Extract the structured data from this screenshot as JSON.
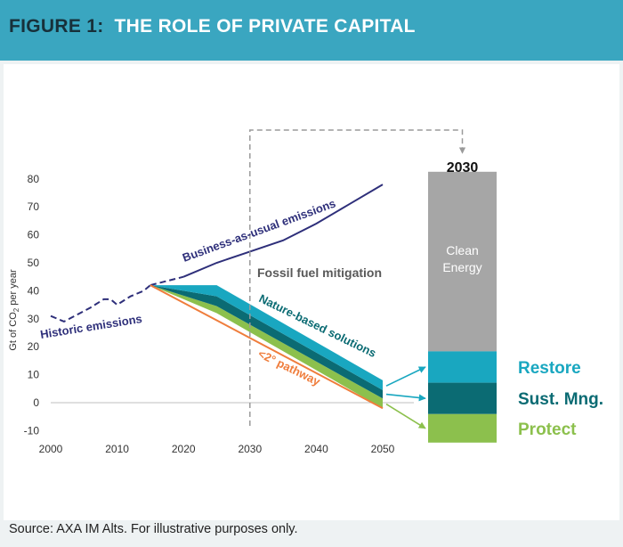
{
  "header": {
    "figure_label": "FIGURE 1:",
    "title": "THE ROLE OF PRIVATE CAPITAL"
  },
  "source": "Source: AXA IM Alts. For illustrative purposes only.",
  "colors": {
    "header_bg": "#3aa6c0",
    "bau": "#2e2f7a",
    "pathway": "#ef7d3c",
    "protect": "#8cc04d",
    "sust_mng": "#0b6b73",
    "restore": "#19a7c0",
    "clean_energy": "#a6a6a6",
    "grey_text": "#595959"
  },
  "chart_data": {
    "type": "line",
    "title": "",
    "ylabel": "Gt of CO2 per year",
    "ylabel_parts": {
      "pre": "Gt of CO",
      "sub": "2",
      "post": " per year"
    },
    "xlabel": "",
    "x_ticks": [
      2000,
      2010,
      2020,
      2030,
      2040,
      2050
    ],
    "y_ticks": [
      -10,
      0,
      10,
      20,
      30,
      40,
      50,
      60,
      70,
      80
    ],
    "xlim": [
      2000,
      2050
    ],
    "ylim": [
      -10,
      80
    ],
    "series": [
      {
        "name": "Historic emissions",
        "style": "dashed",
        "x": [
          2000,
          2002,
          2004,
          2006,
          2008,
          2009,
          2010,
          2012,
          2014,
          2015
        ],
        "y": [
          31,
          29,
          31.5,
          34,
          37,
          37,
          35,
          38,
          40,
          42
        ]
      },
      {
        "name": "Business-as-usual emissions",
        "style": "dashed-then-solid",
        "x": [
          2015,
          2020,
          2025,
          2030,
          2035,
          2040,
          2045,
          2050
        ],
        "y": [
          42,
          45,
          50,
          54,
          58,
          64,
          71,
          78
        ]
      },
      {
        "name": "<2° pathway",
        "x": [
          2015,
          2050
        ],
        "y": [
          42,
          -2
        ]
      }
    ],
    "wedges": [
      {
        "name": "Protect",
        "x": [
          2015,
          2025,
          2050
        ],
        "lower": [
          42,
          32,
          -2
        ],
        "upper": [
          42,
          34.5,
          1.5
        ]
      },
      {
        "name": "Sust. Mng.",
        "x": [
          2015,
          2025,
          2050
        ],
        "lower": [
          42,
          34.5,
          1.5
        ],
        "upper": [
          42,
          38,
          4.5
        ]
      },
      {
        "name": "Restore",
        "x": [
          2015,
          2025,
          2050
        ],
        "lower": [
          42,
          38,
          4.5
        ],
        "upper": [
          42,
          42,
          8
        ]
      }
    ],
    "annotations": {
      "fossil": "Fossil fuel mitigation",
      "nature": "Nature-based solutions",
      "pathway": "<2° pathway",
      "historic": "Historic emissions",
      "bau": "Business-as-usual emissions"
    },
    "highlight_year": 2030,
    "bar_2030": {
      "label": "2030",
      "segments": [
        {
          "name": "Clean Energy",
          "label_lines": [
            "Clean",
            "Energy"
          ],
          "from": 18,
          "to": 81
        },
        {
          "name": "Restore",
          "from": 7,
          "to": 18
        },
        {
          "name": "Sust. Mng.",
          "from": -4,
          "to": 7
        },
        {
          "name": "Protect",
          "from": -14,
          "to": -4
        }
      ]
    }
  }
}
